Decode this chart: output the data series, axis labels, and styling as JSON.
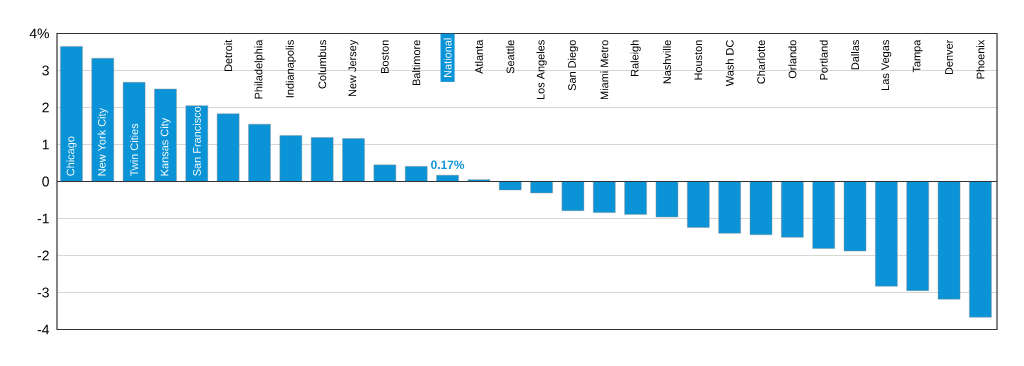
{
  "chart_data": {
    "type": "bar",
    "categories": [
      "Chicago",
      "New York City",
      "Twin Cities",
      "Kansas City",
      "San Francisco",
      "Detroit",
      "Philadelphia",
      "Indianapolis",
      "Columbus",
      "New Jersey",
      "Boston",
      "Baltimore",
      "National",
      "Atlanta",
      "Seattle",
      "Los Angeles",
      "San Diego",
      "Miami Metro",
      "Raleigh",
      "Nashville",
      "Houston",
      "Wash DC",
      "Charlotte",
      "Orlando",
      "Portland",
      "Dallas",
      "Las Vegas",
      "Tampa",
      "Denver",
      "Phoenix"
    ],
    "values": [
      3.65,
      3.33,
      2.68,
      2.5,
      2.05,
      1.83,
      1.55,
      1.24,
      1.19,
      1.16,
      0.45,
      0.41,
      0.17,
      0.05,
      -0.23,
      -0.31,
      -0.79,
      -0.84,
      -0.89,
      -0.96,
      -1.24,
      -1.4,
      -1.44,
      -1.51,
      -1.81,
      -1.88,
      -2.83,
      -2.95,
      -3.18,
      -3.67
    ],
    "value_labels": [
      null,
      null,
      null,
      null,
      null,
      null,
      null,
      null,
      null,
      null,
      null,
      null,
      "0.17%",
      null,
      null,
      null,
      null,
      null,
      null,
      null,
      null,
      null,
      null,
      null,
      null,
      null,
      null,
      null,
      null,
      null
    ],
    "color": "#0a93d6",
    "ylim": [
      -4,
      4
    ],
    "yticks": [
      -4,
      -3,
      -2,
      -1,
      0,
      1,
      2,
      3,
      {
        "value": 4,
        "label": "4%"
      }
    ],
    "grid": "y"
  }
}
